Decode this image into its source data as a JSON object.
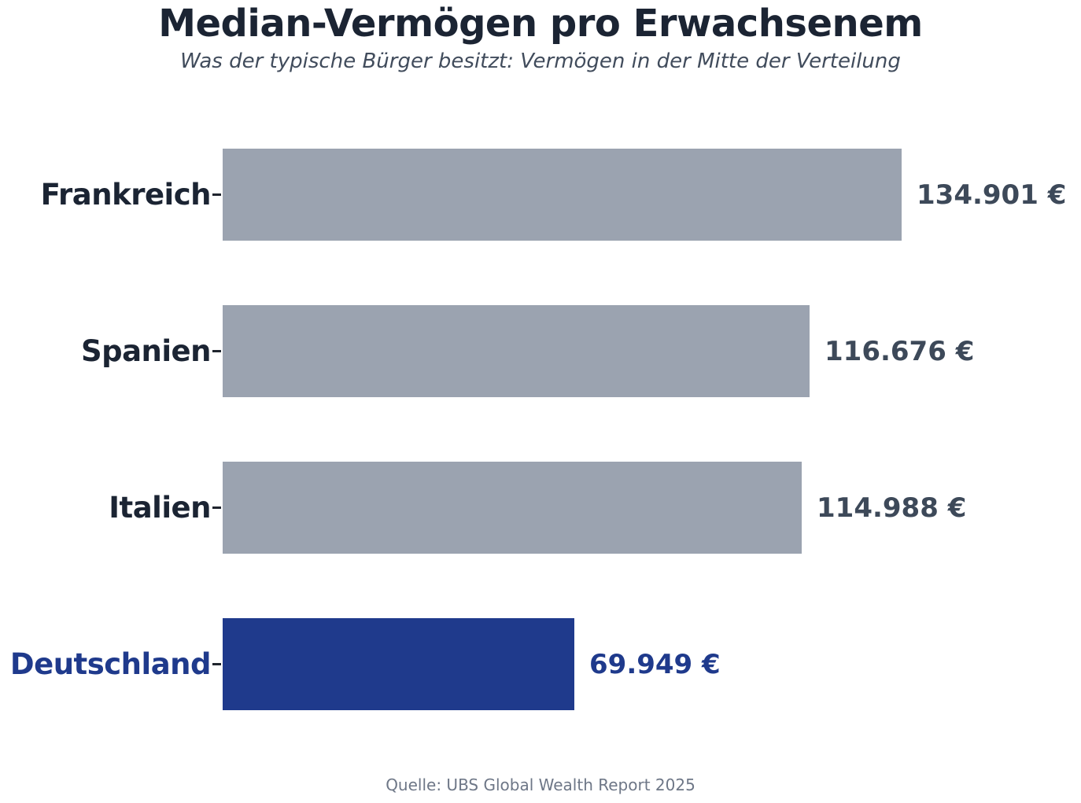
{
  "header": {
    "title": "Median-Vermögen pro Erwachsenem",
    "subtitle": "Was der typische Bürger besitzt: Vermögen in der Mitte der Verteilung"
  },
  "footer": {
    "source": "Quelle: UBS Global Wealth Report 2025"
  },
  "chart_data": {
    "type": "bar",
    "orientation": "horizontal",
    "title": "Median-Vermögen pro Erwachsenem",
    "subtitle": "Was der typische Bürger besitzt: Vermögen in der Mitte der Verteilung",
    "source": "Quelle: UBS Global Wealth Report 2025",
    "categories": [
      "Frankreich",
      "Spanien",
      "Italien",
      "Deutschland"
    ],
    "values": [
      134901,
      116676,
      114988,
      69949
    ],
    "value_labels": [
      "134.901 €",
      "116.676 €",
      "114.988 €",
      "69.949 €"
    ],
    "unit": "€",
    "highlight_index": 3,
    "xlim": [
      0,
      134901
    ],
    "grid": false,
    "legend": false,
    "colors": {
      "bar_default": "#9ba3b0",
      "bar_highlight": "#1f3a8c",
      "label_default": "#1b2433",
      "label_highlight": "#1f3a8c",
      "value_default": "#3d4959",
      "value_highlight": "#1f3a8c",
      "tick": "#20252e",
      "title": "#1b2433",
      "subtitle": "#414c5c",
      "source": "#6e7787"
    }
  }
}
